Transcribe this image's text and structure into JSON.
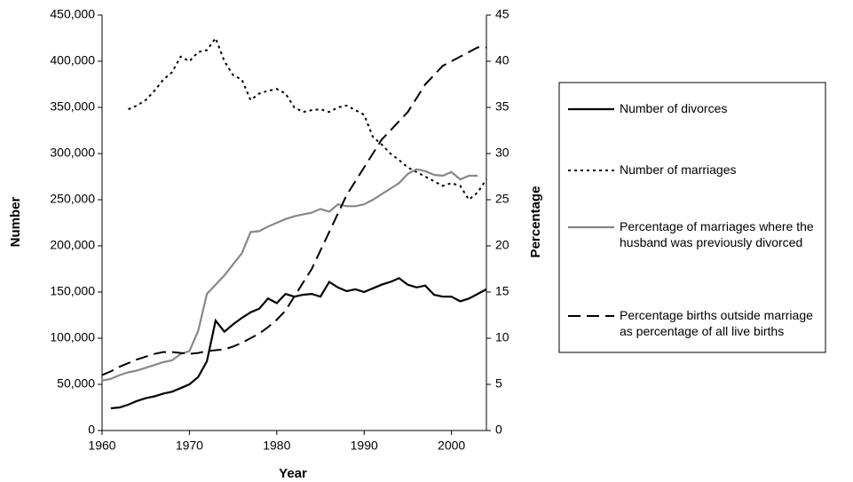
{
  "chart_data": {
    "type": "line",
    "xlabel": "Year",
    "ylabel": "Number",
    "y2label": "Percentage",
    "x": [
      1960,
      1961,
      1962,
      1963,
      1964,
      1965,
      1966,
      1967,
      1968,
      1969,
      1970,
      1971,
      1972,
      1973,
      1974,
      1975,
      1976,
      1977,
      1978,
      1979,
      1980,
      1981,
      1982,
      1983,
      1984,
      1985,
      1986,
      1987,
      1988,
      1989,
      1990,
      1991,
      1992,
      1993,
      1994,
      1995,
      1996,
      1997,
      1998,
      1999,
      2000,
      2001,
      2002,
      2003,
      2004
    ],
    "xlim": [
      1960,
      2004
    ],
    "xticks": [
      1960,
      1970,
      1980,
      1990,
      2000
    ],
    "ylim": [
      0,
      450000
    ],
    "yticks": [
      0,
      {
        "value": 50000,
        "label": "50,000"
      },
      {
        "value": 100000,
        "label": "100,000"
      },
      {
        "value": 150000,
        "label": "150,000"
      },
      {
        "value": 200000,
        "label": "200,000"
      },
      {
        "value": 250000,
        "label": "250,000"
      },
      {
        "value": 300000,
        "label": "300,000"
      },
      {
        "value": 350000,
        "label": "350,000"
      },
      {
        "value": 400000,
        "label": "400,000"
      },
      {
        "value": 450000,
        "label": "450,000"
      }
    ],
    "y2lim": [
      0,
      45
    ],
    "y2ticks": [
      0,
      5,
      10,
      15,
      20,
      25,
      30,
      35,
      40,
      45
    ],
    "legend": "right",
    "series": [
      {
        "name": "Number of divorces",
        "color": "#000000",
        "style": "solid",
        "values": [
          null,
          24000,
          25000,
          28000,
          32000,
          35000,
          37000,
          40000,
          42000,
          46000,
          50000,
          58000,
          75000,
          119000,
          107000,
          115000,
          122000,
          128000,
          132000,
          143000,
          138000,
          148000,
          145000,
          147000,
          148000,
          145000,
          161000,
          155000,
          151000,
          153000,
          150000,
          154000,
          158000,
          161000,
          165000,
          158000,
          155000,
          157000,
          147000,
          145000,
          145000,
          140000,
          143000,
          148000,
          153000
        ]
      },
      {
        "name": "Number of marriages",
        "color": "#000000",
        "style": "dotted",
        "values": [
          null,
          null,
          null,
          348000,
          352000,
          358000,
          368000,
          380000,
          388000,
          405000,
          400000,
          410000,
          412000,
          425000,
          400000,
          385000,
          380000,
          358000,
          365000,
          368000,
          370000,
          365000,
          350000,
          345000,
          347000,
          348000,
          345000,
          350000,
          352000,
          347000,
          342000,
          318000,
          310000,
          300000,
          293000,
          285000,
          280000,
          275000,
          270000,
          265000,
          268000,
          265000,
          250000,
          258000,
          272000
        ]
      },
      {
        "name": "Percentage of marriages where the husband was previously divorced",
        "color": "#888888",
        "style": "solid",
        "axis": "y2",
        "values": [
          5.4,
          5.6,
          6.0,
          6.3,
          6.5,
          6.8,
          7.1,
          7.4,
          7.6,
          8.3,
          8.6,
          10.8,
          14.8,
          15.8,
          16.8,
          18.0,
          19.2,
          21.5,
          21.6,
          22.1,
          22.5,
          22.9,
          23.2,
          23.4,
          23.6,
          24.0,
          23.7,
          24.5,
          24.3,
          24.3,
          24.5,
          25.0,
          25.6,
          26.2,
          26.8,
          27.8,
          28.3,
          28.1,
          27.7,
          27.6,
          28.0,
          27.2,
          27.6,
          27.6,
          null
        ]
      },
      {
        "name": "Percentage births outside marriage as percentage of all live births",
        "color": "#000000",
        "style": "dashed",
        "axis": "y2",
        "values": [
          6.0,
          6.4,
          6.9,
          7.3,
          7.7,
          8.0,
          8.3,
          8.5,
          8.5,
          8.4,
          8.3,
          8.4,
          8.6,
          8.7,
          8.8,
          9.1,
          9.5,
          10.0,
          10.5,
          11.2,
          12.0,
          13.0,
          14.5,
          16.0,
          17.5,
          19.5,
          21.5,
          23.5,
          25.5,
          27.0,
          28.5,
          30.0,
          31.5,
          32.5,
          33.5,
          34.5,
          36.0,
          37.5,
          38.5,
          39.5,
          40.0,
          40.5,
          41.0,
          41.5,
          41.5
        ]
      }
    ]
  }
}
